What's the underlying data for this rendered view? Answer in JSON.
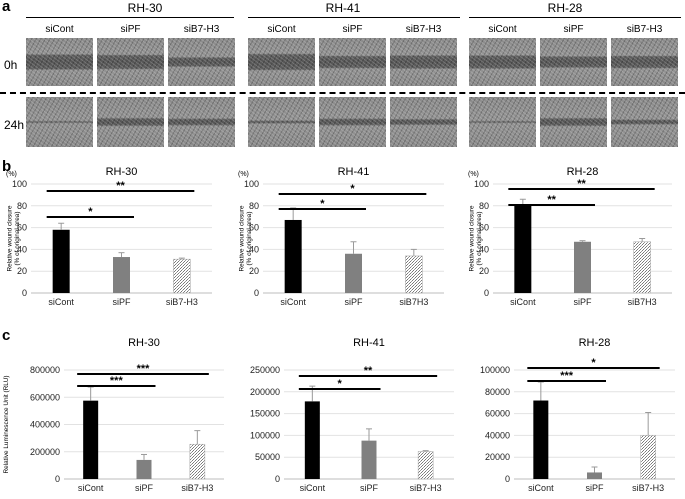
{
  "panel_a": {
    "letter": "a",
    "cell_lines": [
      "RH-30",
      "RH-41",
      "RH-28"
    ],
    "conditions": [
      "siCont",
      "siPF",
      "siB7-H3"
    ],
    "timepoints": [
      "0h",
      "24h"
    ]
  },
  "panel_b": {
    "letter": "b"
  },
  "panel_c": {
    "letter": "c"
  },
  "chart_data": [
    {
      "panel": "b",
      "type": "bar",
      "title": "RH-30",
      "categories": [
        "siCont",
        "siPF",
        "siB7-H3"
      ],
      "values": [
        58,
        33,
        31
      ],
      "errors": [
        6,
        4,
        1
      ],
      "ylabel": "Relative wound closure (% of original area)",
      "unit": "(%)",
      "ylim": [
        0,
        100
      ],
      "yticks": [
        "0",
        "20",
        "40",
        "60",
        "80",
        "100"
      ],
      "significance": [
        {
          "from": 0,
          "to": 1,
          "label": "*"
        },
        {
          "from": 0,
          "to": 2,
          "label": "**"
        }
      ]
    },
    {
      "panel": "b",
      "type": "bar",
      "title": "RH-41",
      "categories": [
        "siCont",
        "siPF",
        "siB7H3"
      ],
      "values": [
        67,
        36,
        34
      ],
      "errors": [
        11,
        11,
        6
      ],
      "ylabel": "Relative wound closure (% of original area)",
      "unit": "(%)",
      "ylim": [
        0,
        100
      ],
      "yticks": [
        "0",
        "20",
        "40",
        "60",
        "80",
        "100"
      ],
      "significance": [
        {
          "from": 0,
          "to": 1,
          "label": "*"
        },
        {
          "from": 0,
          "to": 2,
          "label": "*"
        }
      ]
    },
    {
      "panel": "b",
      "type": "bar",
      "title": "RH-28",
      "categories": [
        "siCont",
        "siPF",
        "siB7H3"
      ],
      "values": [
        80,
        47,
        47
      ],
      "errors": [
        6,
        1,
        3
      ],
      "ylabel": "Relative wound closure (% of original area)",
      "unit": "(%)",
      "ylim": [
        0,
        100
      ],
      "yticks": [
        "0",
        "20",
        "40",
        "60",
        "80",
        "100"
      ],
      "significance": [
        {
          "from": 0,
          "to": 1,
          "label": "**"
        },
        {
          "from": 0,
          "to": 2,
          "label": "**"
        }
      ]
    },
    {
      "panel": "c",
      "type": "bar",
      "title": "RH-30",
      "categories": [
        "siCont",
        "siPF",
        "siB7-H3"
      ],
      "values": [
        575000,
        140000,
        255000
      ],
      "errors": [
        100000,
        40000,
        100000
      ],
      "ylabel": "Relative Luminescence Unit (RLU)",
      "ylim": [
        0,
        800000
      ],
      "yticks": [
        "0",
        "200000",
        "400000",
        "600000",
        "800000"
      ],
      "significance": [
        {
          "from": 0,
          "to": 1,
          "label": "***"
        },
        {
          "from": 0,
          "to": 2,
          "label": "***"
        }
      ]
    },
    {
      "panel": "c",
      "type": "bar",
      "title": "RH-41",
      "categories": [
        "siCont",
        "siPF",
        "siB7-H3"
      ],
      "values": [
        178000,
        88000,
        63000
      ],
      "errors": [
        35000,
        27000,
        2000
      ],
      "ylim": [
        0,
        250000
      ],
      "yticks": [
        "0",
        "50000",
        "100000",
        "150000",
        "200000",
        "250000"
      ],
      "significance": [
        {
          "from": 0,
          "to": 1,
          "label": "*"
        },
        {
          "from": 0,
          "to": 2,
          "label": "**"
        }
      ]
    },
    {
      "panel": "c",
      "type": "bar",
      "title": "RH-28",
      "categories": [
        "siCont",
        "siPF",
        "siB7-H3"
      ],
      "values": [
        72000,
        6000,
        40000
      ],
      "errors": [
        17000,
        5000,
        21000
      ],
      "ylim": [
        0,
        100000
      ],
      "yticks": [
        "0",
        "20000",
        "40000",
        "60000",
        "80000",
        "100000"
      ],
      "significance": [
        {
          "from": 0,
          "to": 1,
          "label": "***"
        },
        {
          "from": 0,
          "to": 2,
          "label": "*"
        }
      ]
    }
  ]
}
